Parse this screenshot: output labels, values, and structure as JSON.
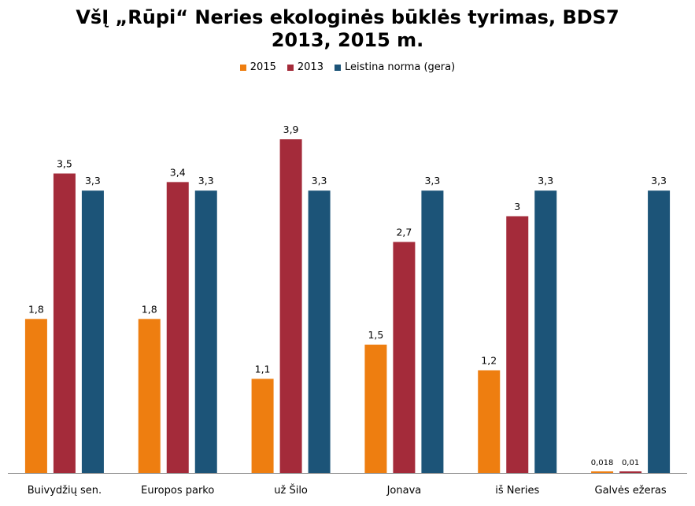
{
  "chart_data": {
    "type": "bar",
    "title_line1": "VšĮ „Rūpi“ Neries ekologinės būklės tyrimas, BDS7",
    "title_line2": "2013, 2015 m.",
    "categories": [
      "Buivydžių sen.",
      "Europos parko",
      "už Šilo",
      "Jonava",
      "iš Neries",
      "Galvės ežeras"
    ],
    "series": [
      {
        "name": "2015",
        "color": "#EE7E10",
        "values": [
          1.8,
          1.8,
          1.1,
          1.5,
          1.2,
          0.018
        ],
        "labels": [
          "1,8",
          "1,8",
          "1,1",
          "1,5",
          "1,2",
          "0,018"
        ]
      },
      {
        "name": "2013",
        "color": "#A42B3A",
        "values": [
          3.5,
          3.4,
          3.9,
          2.7,
          3.0,
          0.01
        ],
        "labels": [
          "3,5",
          "3,4",
          "3,9",
          "2,7",
          "3",
          "0,01"
        ]
      },
      {
        "name": "Leistina norma (gera)",
        "color": "#1C5478",
        "values": [
          3.3,
          3.3,
          3.3,
          3.3,
          3.3,
          3.3
        ],
        "labels": [
          "3,3",
          "3,3",
          "3,3",
          "3,3",
          "3,3",
          "3,3"
        ]
      }
    ],
    "small_label_colors": [
      "#1A6FC0",
      "#EE7E10"
    ],
    "ylim": [
      0,
      4.1
    ],
    "grid": false,
    "legend_position": "top-center"
  }
}
